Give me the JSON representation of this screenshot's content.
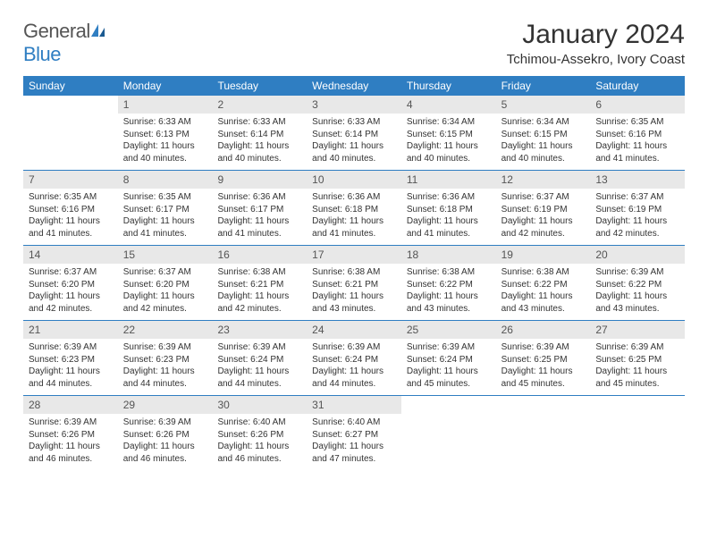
{
  "logo": {
    "general": "General",
    "blue": "Blue"
  },
  "title": "January 2024",
  "location": "Tchimou-Assekro, Ivory Coast",
  "colors": {
    "header_bg": "#2f7ec2",
    "header_text": "#ffffff",
    "daynum_bg": "#e8e8e8",
    "border": "#2f7ec2",
    "text": "#333333",
    "background": "#ffffff"
  },
  "day_headers": [
    "Sunday",
    "Monday",
    "Tuesday",
    "Wednesday",
    "Thursday",
    "Friday",
    "Saturday"
  ],
  "weeks": [
    [
      {
        "empty": true
      },
      {
        "num": "1",
        "sunrise": "Sunrise: 6:33 AM",
        "sunset": "Sunset: 6:13 PM",
        "daylight": "Daylight: 11 hours and 40 minutes."
      },
      {
        "num": "2",
        "sunrise": "Sunrise: 6:33 AM",
        "sunset": "Sunset: 6:14 PM",
        "daylight": "Daylight: 11 hours and 40 minutes."
      },
      {
        "num": "3",
        "sunrise": "Sunrise: 6:33 AM",
        "sunset": "Sunset: 6:14 PM",
        "daylight": "Daylight: 11 hours and 40 minutes."
      },
      {
        "num": "4",
        "sunrise": "Sunrise: 6:34 AM",
        "sunset": "Sunset: 6:15 PM",
        "daylight": "Daylight: 11 hours and 40 minutes."
      },
      {
        "num": "5",
        "sunrise": "Sunrise: 6:34 AM",
        "sunset": "Sunset: 6:15 PM",
        "daylight": "Daylight: 11 hours and 40 minutes."
      },
      {
        "num": "6",
        "sunrise": "Sunrise: 6:35 AM",
        "sunset": "Sunset: 6:16 PM",
        "daylight": "Daylight: 11 hours and 41 minutes."
      }
    ],
    [
      {
        "num": "7",
        "sunrise": "Sunrise: 6:35 AM",
        "sunset": "Sunset: 6:16 PM",
        "daylight": "Daylight: 11 hours and 41 minutes."
      },
      {
        "num": "8",
        "sunrise": "Sunrise: 6:35 AM",
        "sunset": "Sunset: 6:17 PM",
        "daylight": "Daylight: 11 hours and 41 minutes."
      },
      {
        "num": "9",
        "sunrise": "Sunrise: 6:36 AM",
        "sunset": "Sunset: 6:17 PM",
        "daylight": "Daylight: 11 hours and 41 minutes."
      },
      {
        "num": "10",
        "sunrise": "Sunrise: 6:36 AM",
        "sunset": "Sunset: 6:18 PM",
        "daylight": "Daylight: 11 hours and 41 minutes."
      },
      {
        "num": "11",
        "sunrise": "Sunrise: 6:36 AM",
        "sunset": "Sunset: 6:18 PM",
        "daylight": "Daylight: 11 hours and 41 minutes."
      },
      {
        "num": "12",
        "sunrise": "Sunrise: 6:37 AM",
        "sunset": "Sunset: 6:19 PM",
        "daylight": "Daylight: 11 hours and 42 minutes."
      },
      {
        "num": "13",
        "sunrise": "Sunrise: 6:37 AM",
        "sunset": "Sunset: 6:19 PM",
        "daylight": "Daylight: 11 hours and 42 minutes."
      }
    ],
    [
      {
        "num": "14",
        "sunrise": "Sunrise: 6:37 AM",
        "sunset": "Sunset: 6:20 PM",
        "daylight": "Daylight: 11 hours and 42 minutes."
      },
      {
        "num": "15",
        "sunrise": "Sunrise: 6:37 AM",
        "sunset": "Sunset: 6:20 PM",
        "daylight": "Daylight: 11 hours and 42 minutes."
      },
      {
        "num": "16",
        "sunrise": "Sunrise: 6:38 AM",
        "sunset": "Sunset: 6:21 PM",
        "daylight": "Daylight: 11 hours and 42 minutes."
      },
      {
        "num": "17",
        "sunrise": "Sunrise: 6:38 AM",
        "sunset": "Sunset: 6:21 PM",
        "daylight": "Daylight: 11 hours and 43 minutes."
      },
      {
        "num": "18",
        "sunrise": "Sunrise: 6:38 AM",
        "sunset": "Sunset: 6:22 PM",
        "daylight": "Daylight: 11 hours and 43 minutes."
      },
      {
        "num": "19",
        "sunrise": "Sunrise: 6:38 AM",
        "sunset": "Sunset: 6:22 PM",
        "daylight": "Daylight: 11 hours and 43 minutes."
      },
      {
        "num": "20",
        "sunrise": "Sunrise: 6:39 AM",
        "sunset": "Sunset: 6:22 PM",
        "daylight": "Daylight: 11 hours and 43 minutes."
      }
    ],
    [
      {
        "num": "21",
        "sunrise": "Sunrise: 6:39 AM",
        "sunset": "Sunset: 6:23 PM",
        "daylight": "Daylight: 11 hours and 44 minutes."
      },
      {
        "num": "22",
        "sunrise": "Sunrise: 6:39 AM",
        "sunset": "Sunset: 6:23 PM",
        "daylight": "Daylight: 11 hours and 44 minutes."
      },
      {
        "num": "23",
        "sunrise": "Sunrise: 6:39 AM",
        "sunset": "Sunset: 6:24 PM",
        "daylight": "Daylight: 11 hours and 44 minutes."
      },
      {
        "num": "24",
        "sunrise": "Sunrise: 6:39 AM",
        "sunset": "Sunset: 6:24 PM",
        "daylight": "Daylight: 11 hours and 44 minutes."
      },
      {
        "num": "25",
        "sunrise": "Sunrise: 6:39 AM",
        "sunset": "Sunset: 6:24 PM",
        "daylight": "Daylight: 11 hours and 45 minutes."
      },
      {
        "num": "26",
        "sunrise": "Sunrise: 6:39 AM",
        "sunset": "Sunset: 6:25 PM",
        "daylight": "Daylight: 11 hours and 45 minutes."
      },
      {
        "num": "27",
        "sunrise": "Sunrise: 6:39 AM",
        "sunset": "Sunset: 6:25 PM",
        "daylight": "Daylight: 11 hours and 45 minutes."
      }
    ],
    [
      {
        "num": "28",
        "sunrise": "Sunrise: 6:39 AM",
        "sunset": "Sunset: 6:26 PM",
        "daylight": "Daylight: 11 hours and 46 minutes."
      },
      {
        "num": "29",
        "sunrise": "Sunrise: 6:39 AM",
        "sunset": "Sunset: 6:26 PM",
        "daylight": "Daylight: 11 hours and 46 minutes."
      },
      {
        "num": "30",
        "sunrise": "Sunrise: 6:40 AM",
        "sunset": "Sunset: 6:26 PM",
        "daylight": "Daylight: 11 hours and 46 minutes."
      },
      {
        "num": "31",
        "sunrise": "Sunrise: 6:40 AM",
        "sunset": "Sunset: 6:27 PM",
        "daylight": "Daylight: 11 hours and 47 minutes."
      },
      {
        "empty": true
      },
      {
        "empty": true
      },
      {
        "empty": true
      }
    ]
  ]
}
